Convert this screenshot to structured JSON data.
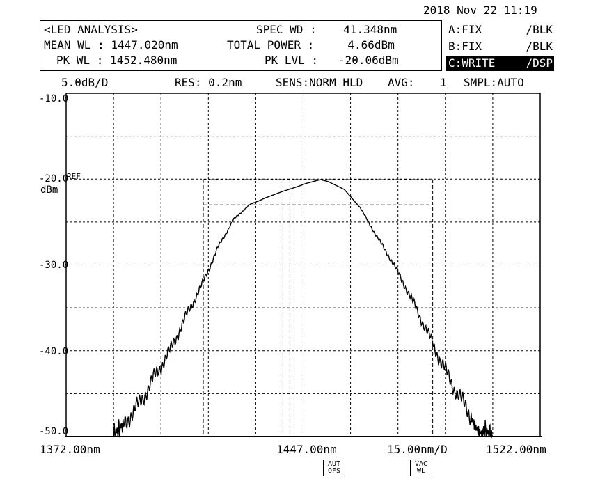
{
  "header": {
    "datetime": "2018 Nov 22 11:19",
    "analysis_title": "<LED ANALYSIS>",
    "mean_wl": "MEAN WL : 1447.020nm",
    "pk_wl": "PK WL : 1452.480nm",
    "spec_wd": "SPEC WD :    41.348nm",
    "total_power": "TOTAL POWER :     4.66dBm",
    "pk_lvl": "PK LVL :   -20.06dBm"
  },
  "traces": [
    {
      "name": "A:FIX",
      "mode": "/BLK",
      "selected": false
    },
    {
      "name": "B:FIX",
      "mode": "/BLK",
      "selected": false
    },
    {
      "name": "C:WRITE",
      "mode": "/DSP",
      "selected": true
    }
  ],
  "status_bar": {
    "scale": "5.0dB/D",
    "res": "RES: 0.2nm",
    "sens": "SENS:NORM HLD",
    "avg_label": "AVG:",
    "avg_value": "1",
    "smpl": "SMPL:AUTO"
  },
  "chart_data": {
    "type": "line",
    "xlabel": "",
    "ylabel": "dBm",
    "xlim": [
      1372.0,
      1522.0
    ],
    "ylim": [
      -50.0,
      -10.0
    ],
    "x_ticks_labels": {
      "start": "1372.00nm",
      "center": "1447.00nm",
      "span": "15.00nm/D",
      "stop": "1522.00nm"
    },
    "y_tick_labels": [
      "-10.0",
      "-20.0",
      "-30.0",
      "-40.0",
      "-50.0"
    ],
    "ref_label": "REF",
    "ref_level": -20.0,
    "grid": true,
    "series": [
      {
        "x": [
          1387,
          1390,
          1395,
          1400,
          1405,
          1410,
          1415,
          1420,
          1425,
          1430,
          1435,
          1440,
          1445,
          1448,
          1450,
          1452.48,
          1455,
          1460,
          1465,
          1470,
          1475,
          1480,
          1485,
          1490,
          1495,
          1500,
          1504,
          1507
        ],
        "y": [
          -50.0,
          -48.6,
          -46.3,
          -43.0,
          -39.9,
          -35.9,
          -32.3,
          -28.0,
          -24.7,
          -23.0,
          -22.2,
          -21.5,
          -20.9,
          -20.5,
          -20.3,
          -20.06,
          -20.3,
          -21.2,
          -23.3,
          -26.5,
          -29.5,
          -33.0,
          -36.8,
          -40.8,
          -44.5,
          -47.5,
          -49.3,
          -50.0
        ]
      }
    ],
    "markers": {
      "spec_width_outer_nm": [
        1415.4,
        1488.0
      ],
      "spec_width_inner_nm": [
        1440.6,
        1442.8
      ],
      "peak_level_dbm": -20.06,
      "lower_level_dbm": -23.0
    }
  },
  "badges": {
    "aut_ofs": [
      "AUT",
      "OFS"
    ],
    "vac_wl": [
      "VAC",
      "WL"
    ]
  }
}
